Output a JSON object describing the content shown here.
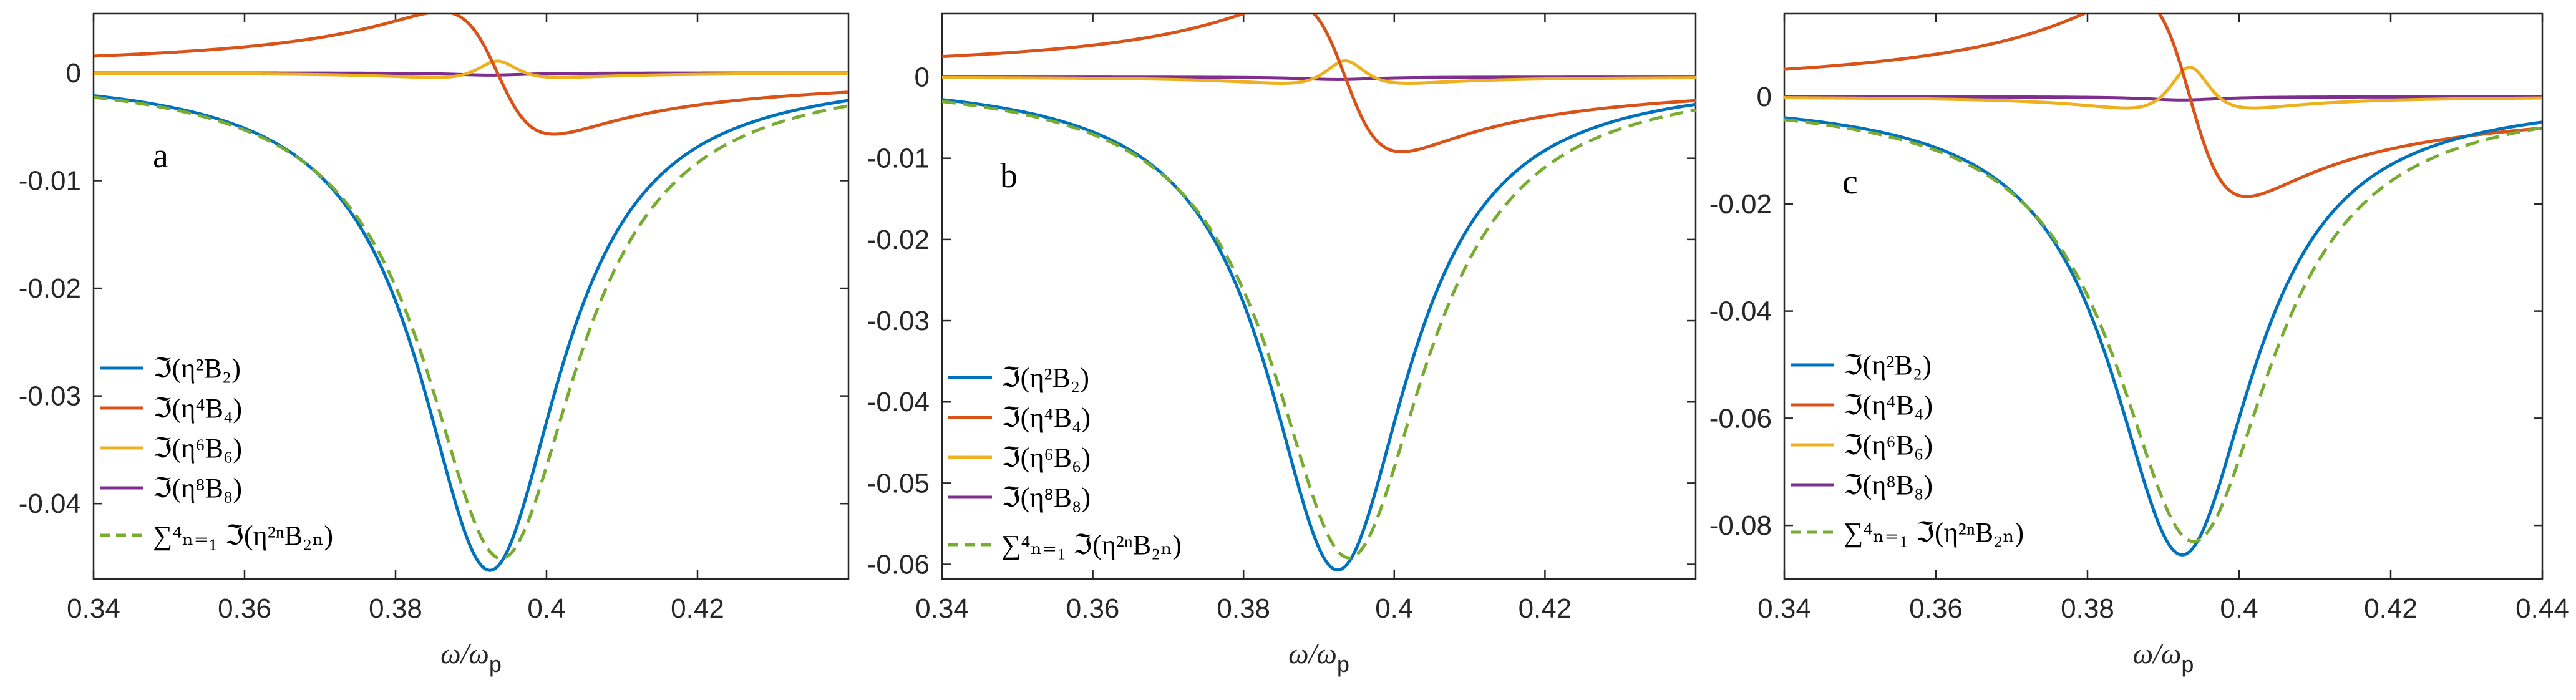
{
  "colors": {
    "B2": "#0072BD",
    "B4": "#D95319",
    "B6": "#EDB120",
    "B8": "#7E2F8E",
    "sum": "#77AC30",
    "axis": "#262626"
  },
  "legend_labels": {
    "B2": "ℑ(η²B₂)",
    "B4": "ℑ(η⁴B₄)",
    "B6": "ℑ(η⁶B₆)",
    "B8": "ℑ(η⁸B₈)",
    "sum": "∑⁴ₙ₌₁ ℑ(η²ⁿB₂ₙ)"
  },
  "chart_data": [
    {
      "type": "line",
      "panel": "a",
      "xlabel": "ω/ω",
      "xlabel_sub": "p",
      "xlim": [
        0.34,
        0.44
      ],
      "ylim": [
        -0.047,
        0.0055
      ],
      "xticks": [
        "0.34",
        "0.36",
        "0.38",
        "0.4",
        "0.42"
      ],
      "xtick_values": [
        0.34,
        0.36,
        0.38,
        0.4,
        0.42
      ],
      "yticks": [
        "0",
        "-0.01",
        "-0.02",
        "-0.03",
        "-0.04"
      ],
      "ytick_values": [
        0,
        -0.01,
        -0.02,
        -0.03,
        -0.04
      ],
      "x0": 0.3925,
      "series": [
        {
          "key": "B2",
          "name": "ℑ(η²B₂)",
          "A": -0.0462,
          "w": 0.0115,
          "style": "lor"
        },
        {
          "key": "B4",
          "name": "ℑ(η⁴B₄)",
          "A": 0.0058,
          "w": 0.0075,
          "c": 0.3935,
          "style": "disp"
        },
        {
          "key": "B6",
          "name": "ℑ(η⁶B₆)",
          "A": 0.0011,
          "w": 0.0038,
          "c": 0.3935,
          "style": "disp6"
        },
        {
          "key": "B8",
          "name": "ℑ(η⁸B₈)",
          "A": -0.0002,
          "w": 0.006,
          "style": "lor"
        },
        {
          "key": "sum",
          "name": "∑ ℑ(η²ⁿB₂ₙ)",
          "A": -0.0451,
          "w": 0.0124,
          "shift": 0.0015,
          "style": "lor",
          "dashed": true
        }
      ]
    },
    {
      "type": "line",
      "panel": "b",
      "xlabel": "ω/ω",
      "xlabel_sub": "p",
      "xlim": [
        0.34,
        0.44
      ],
      "ylim": [
        -0.0618,
        0.0078
      ],
      "xticks": [
        "0.34",
        "0.36",
        "0.38",
        "0.4",
        "0.42"
      ],
      "xtick_values": [
        0.34,
        0.36,
        0.38,
        0.4,
        0.42
      ],
      "yticks": [
        "0",
        "-0.01",
        "-0.02",
        "-0.03",
        "-0.04",
        "-0.05",
        "-0.06"
      ],
      "ytick_values": [
        0,
        -0.01,
        -0.02,
        -0.03,
        -0.04,
        -0.05,
        -0.06
      ],
      "x0": 0.3925,
      "series": [
        {
          "key": "B2",
          "name": "ℑ(η²B₂)",
          "A": -0.0607,
          "w": 0.0115,
          "style": "lor"
        },
        {
          "key": "B4",
          "name": "ℑ(η⁴B₄)",
          "A": 0.0094,
          "w": 0.0075,
          "c": 0.3935,
          "style": "disp"
        },
        {
          "key": "B6",
          "name": "ℑ(η⁶B₆)",
          "A": 0.002,
          "w": 0.0038,
          "c": 0.3935,
          "style": "disp6"
        },
        {
          "key": "B8",
          "name": "ℑ(η⁸B₈)",
          "A": -0.0003,
          "w": 0.006,
          "style": "lor"
        },
        {
          "key": "sum",
          "name": "∑ ℑ(η²ⁿB₂ₙ)",
          "A": -0.0592,
          "w": 0.0125,
          "shift": 0.0015,
          "style": "lor",
          "dashed": true
        }
      ]
    },
    {
      "type": "line",
      "panel": "c",
      "xlabel": "ω/ω",
      "xlabel_sub": "p",
      "xlim": [
        0.34,
        0.44
      ],
      "ylim": [
        -0.09,
        0.0155
      ],
      "xticks": [
        "0.34",
        "0.36",
        "0.38",
        "0.4",
        "0.42",
        "0.44"
      ],
      "xtick_values": [
        0.34,
        0.36,
        0.38,
        0.4,
        0.42,
        0.44
      ],
      "yticks": [
        "0",
        "-0.02",
        "-0.04",
        "-0.06",
        "-0.08"
      ],
      "ytick_values": [
        0,
        -0.02,
        -0.04,
        -0.06,
        -0.08
      ],
      "x0": 0.3925,
      "series": [
        {
          "key": "B2",
          "name": "ℑ(η²B₂)",
          "A": -0.0855,
          "w": 0.0115,
          "style": "lor"
        },
        {
          "key": "B4",
          "name": "ℑ(η⁴B₄)",
          "A": 0.019,
          "w": 0.0075,
          "c": 0.3935,
          "style": "disp"
        },
        {
          "key": "B6",
          "name": "ℑ(η⁶B₆)",
          "A": 0.0055,
          "w": 0.0038,
          "c": 0.3935,
          "style": "disp6"
        },
        {
          "key": "B8",
          "name": "ℑ(η⁸B₈)",
          "A": -0.0006,
          "w": 0.006,
          "style": "lor"
        },
        {
          "key": "sum",
          "name": "∑ ℑ(η²ⁿB₂ₙ)",
          "A": -0.083,
          "w": 0.0126,
          "shift": 0.0015,
          "style": "lor",
          "dashed": true
        }
      ]
    }
  ]
}
